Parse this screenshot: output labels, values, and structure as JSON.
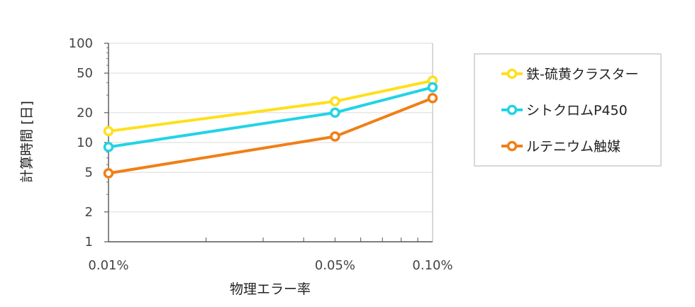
{
  "chart_data": {
    "type": "line",
    "xlabel": "物理エラー率",
    "ylabel": "計算時間 [日]",
    "x_scale": "log",
    "y_scale": "log",
    "x": [
      0.01,
      0.05,
      0.1
    ],
    "x_ticks": [
      {
        "value": 0.01,
        "label": "0.01%"
      },
      {
        "value": 0.05,
        "label": "0.05%"
      },
      {
        "value": 0.1,
        "label": "0.10%"
      }
    ],
    "y_ticks": [
      {
        "value": 1,
        "label": "1"
      },
      {
        "value": 2,
        "label": "2"
      },
      {
        "value": 5,
        "label": "5"
      },
      {
        "value": 10,
        "label": "10"
      },
      {
        "value": 20,
        "label": "20"
      },
      {
        "value": 50,
        "label": "50"
      },
      {
        "value": 100,
        "label": "100"
      }
    ],
    "ylim": [
      1,
      100
    ],
    "xlim": [
      0.01,
      0.1
    ],
    "grid": "horizontal",
    "legend_position": "right",
    "series": [
      {
        "name": "鉄-硫黄クラスター",
        "color": "#FFE01A",
        "values": [
          13,
          26,
          42
        ]
      },
      {
        "name": "シトクロムP450",
        "color": "#22D3E6",
        "values": [
          9,
          20,
          36
        ]
      },
      {
        "name": "ルテニウム触媒",
        "color": "#F07F16",
        "values": [
          4.9,
          11.5,
          28
        ]
      }
    ]
  }
}
